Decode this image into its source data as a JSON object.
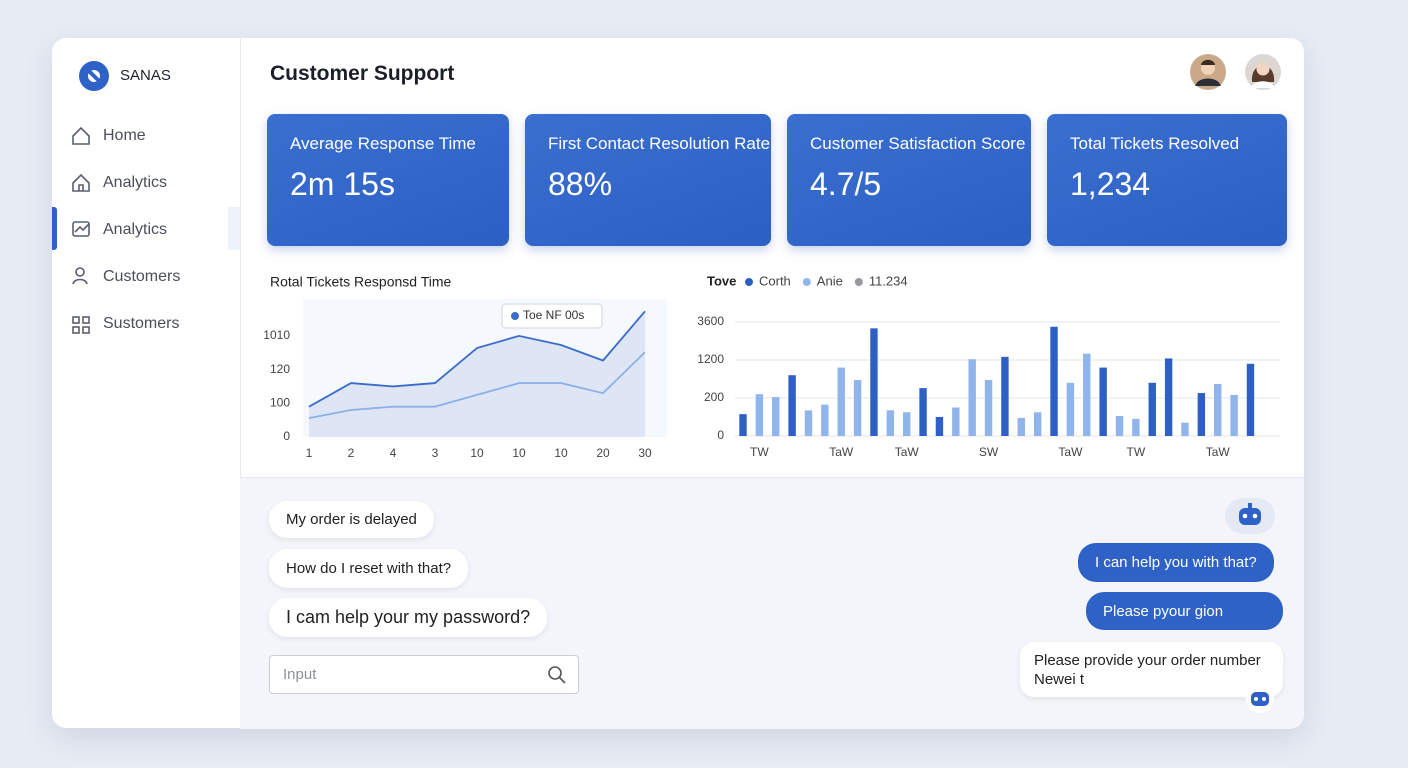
{
  "sidebar": {
    "brand": "SANAS",
    "nav": [
      "Home",
      "Analytics",
      "Analytics",
      "Customers",
      "Sustomers"
    ]
  },
  "header": {
    "title": "Customer Support"
  },
  "kpis": [
    {
      "label": "Average Response Time",
      "value": "2m 15s"
    },
    {
      "label": "First Contact Resolution Rate",
      "value": "88%"
    },
    {
      "label": "Customer Satisfaction Score",
      "value": "4.7/5"
    },
    {
      "label": "Total Tickets Resolved",
      "value": "1,234"
    }
  ],
  "chart_data": [
    {
      "type": "line",
      "title": "Rotal Tickets Responsd Time",
      "categories": [
        "1",
        "2",
        "4",
        "3",
        "10",
        "10",
        "10",
        "20",
        "30"
      ],
      "series": [
        {
          "name": "Toe NF 00s",
          "color": "#3a6cc8",
          "values": [
            90,
            112,
            110,
            112,
            690,
            1010,
            770,
            360,
            1660
          ]
        },
        {
          "color": "#8db0e6",
          "values": [
            56,
            80,
            90,
            90,
            105,
            112,
            112,
            106,
            580
          ]
        }
      ],
      "ylim": [
        0,
        2000
      ],
      "yticks": [
        0,
        100,
        120,
        1010
      ],
      "grid": false
    },
    {
      "type": "bar",
      "legend_title": "Tove",
      "categories": [
        null,
        "TW",
        null,
        null,
        null,
        null,
        "TaW",
        null,
        null,
        null,
        "TaW",
        null,
        null,
        null,
        null,
        "SW",
        null,
        null,
        null,
        null,
        "TaW",
        null,
        null,
        null,
        "TW",
        null,
        null,
        null,
        null,
        "TaW",
        null,
        null
      ],
      "series": [
        {
          "name": "Corth",
          "color": "#2e5fc4",
          "values": [
            115,
            null,
            null,
            800,
            null,
            null,
            null,
            null,
            3200,
            null,
            null,
            460,
            100,
            null,
            null,
            null,
            1400,
            null,
            null,
            3300,
            null,
            null,
            1000,
            null,
            null,
            600,
            1300,
            null,
            330,
            null,
            null,
            1100
          ]
        },
        {
          "name": "Anie",
          "color": "#90b4ec",
          "values": [
            null,
            300,
            225,
            null,
            135,
            165,
            1000,
            675,
            null,
            135,
            125,
            null,
            null,
            150,
            1250,
            675,
            null,
            95,
            125,
            null,
            600,
            1600,
            null,
            105,
            90,
            null,
            null,
            70,
            null,
            570,
            280,
            null
          ]
        },
        {
          "name": "11.234",
          "color": "#9a9a9e",
          "values": [
            null,
            null,
            null,
            null,
            null,
            null,
            null,
            null,
            null,
            null,
            null,
            null,
            null,
            null,
            null,
            null,
            null,
            null,
            null,
            null,
            null,
            null,
            null,
            null,
            null,
            null,
            null,
            null,
            null,
            null,
            null,
            null
          ]
        }
      ],
      "ylim": [
        0,
        3600
      ],
      "yticks": [
        0,
        200,
        1200,
        3600
      ],
      "grid": true
    }
  ],
  "chat": {
    "user_messages": [
      "My order is delayed",
      "How do I reset with that?",
      "I cam help your my password?"
    ],
    "input_placeholder": "Input",
    "bot_messages": [
      "I can help you with that?",
      "Please pyour gion"
    ],
    "bot_card": [
      "Please provide your order number",
      "Newei t"
    ]
  }
}
